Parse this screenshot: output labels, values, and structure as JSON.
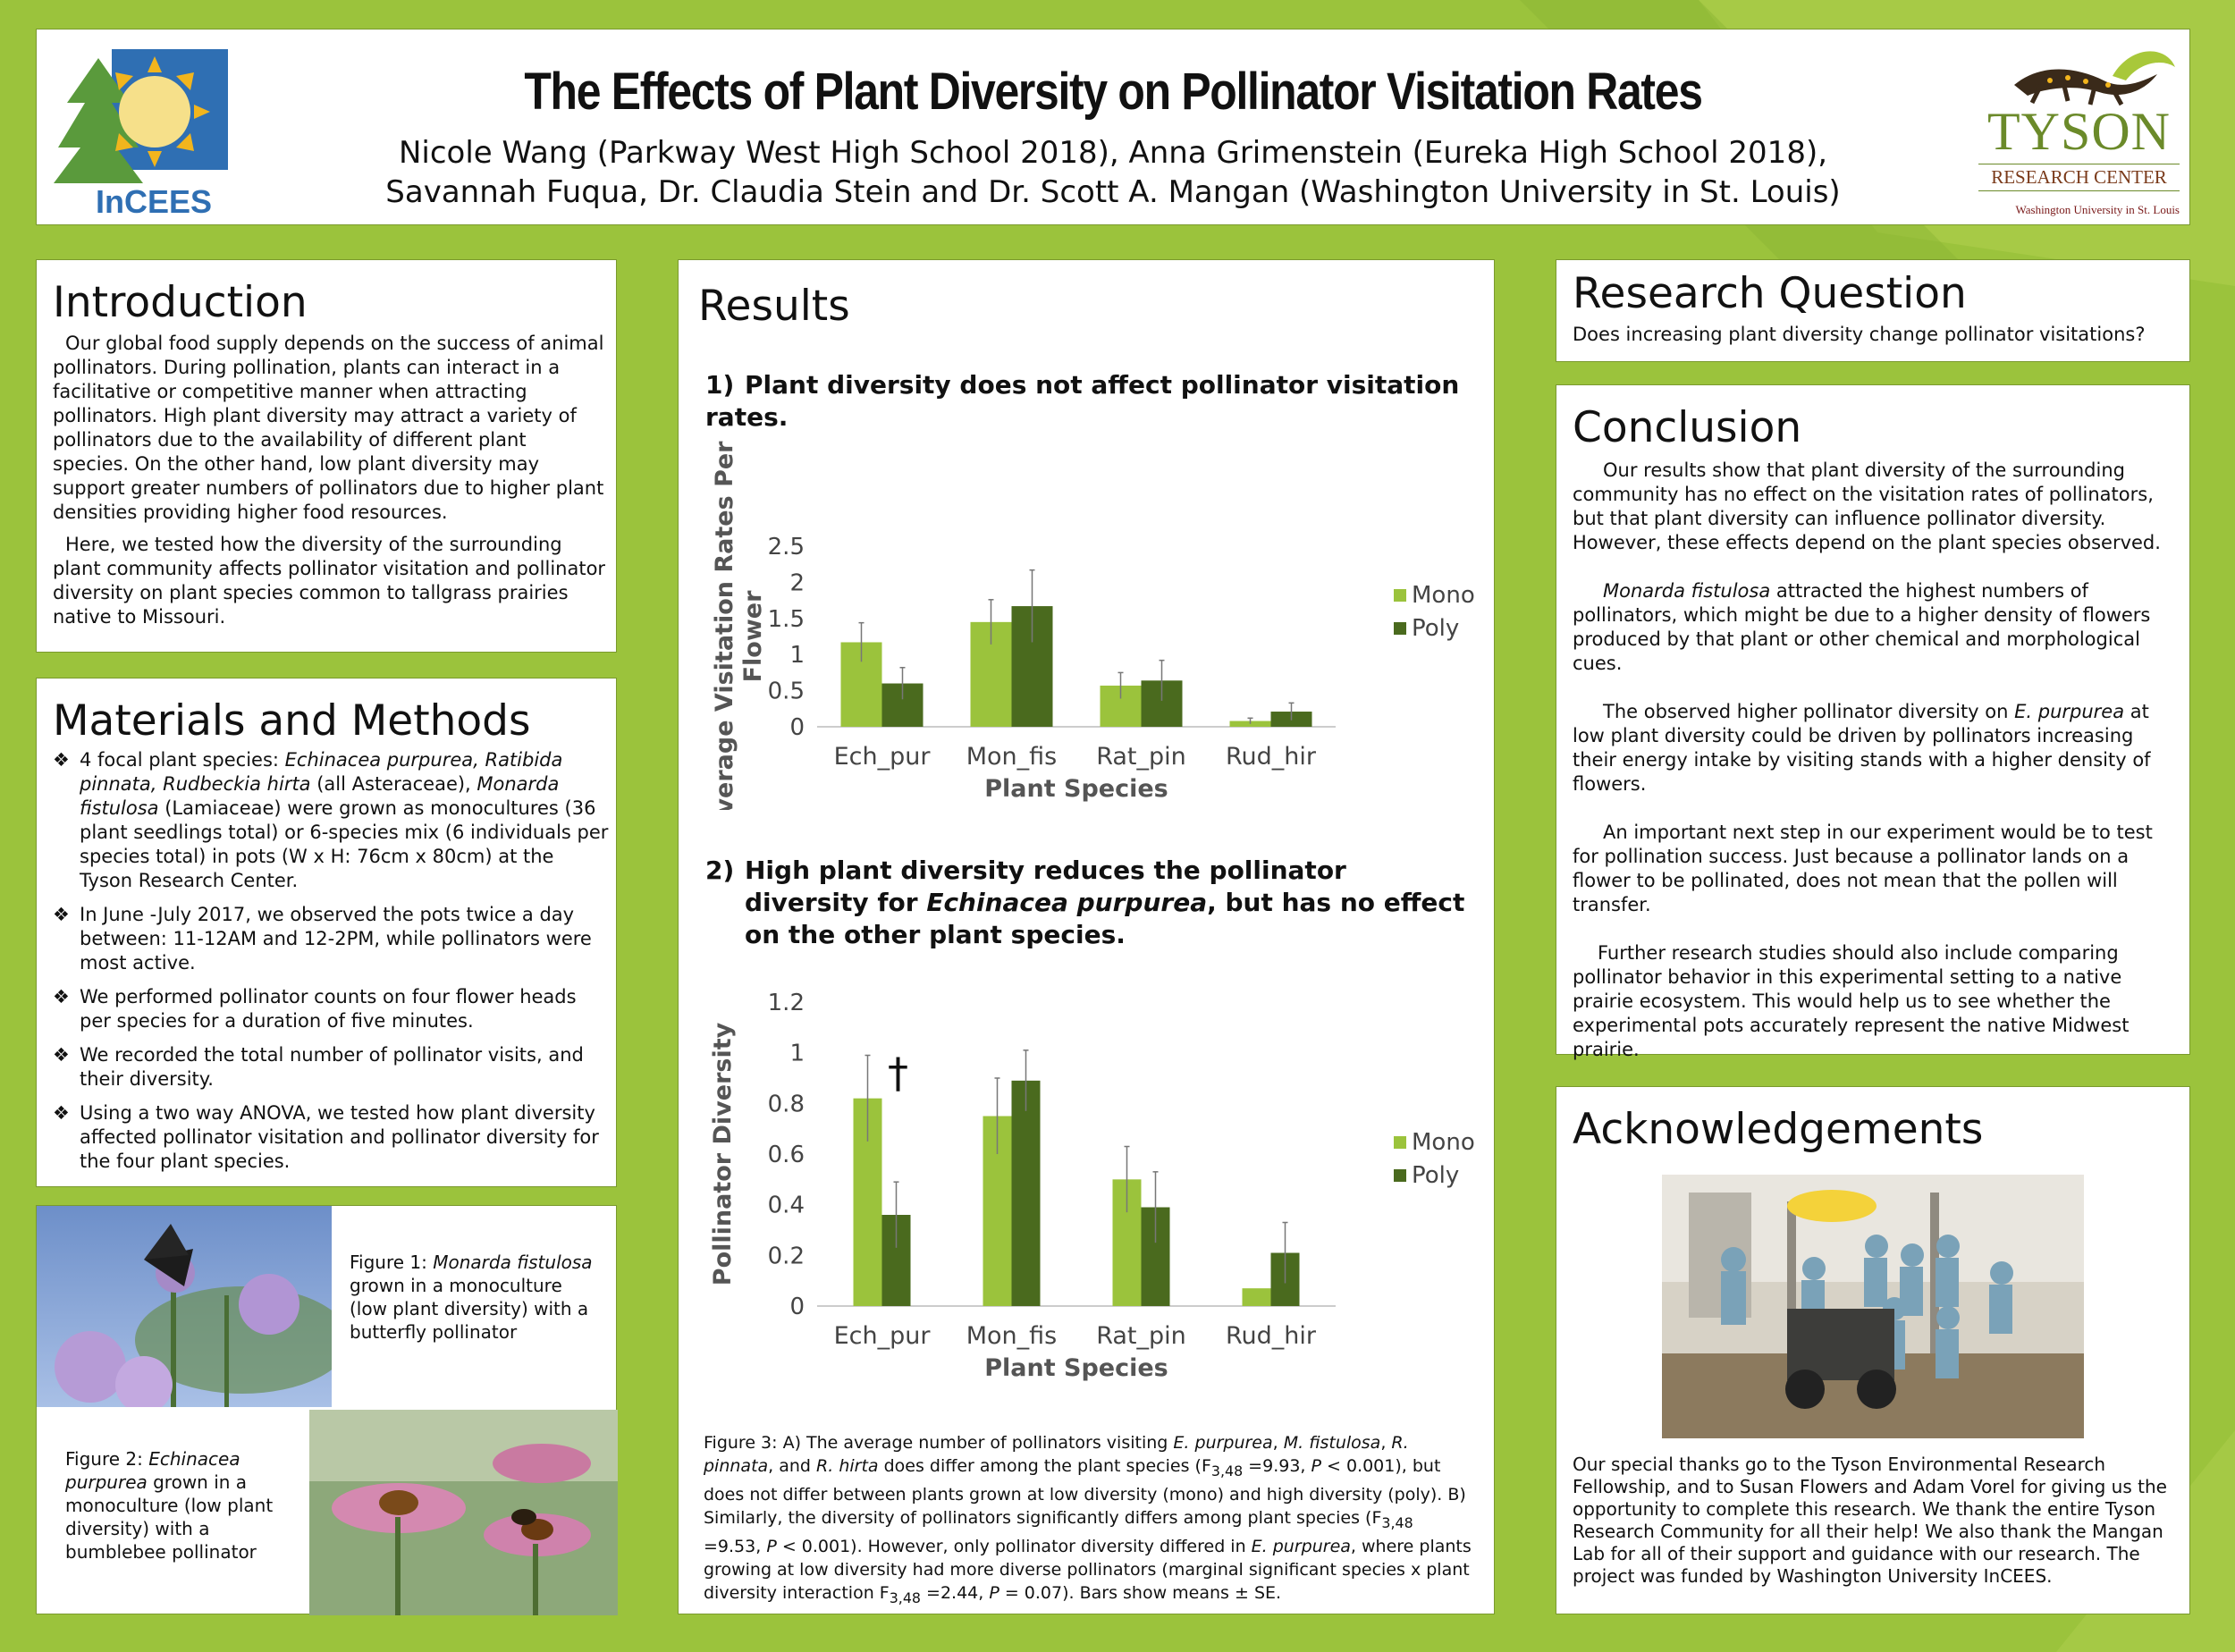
{
  "header": {
    "title": "The Effects of Plant Diversity on Pollinator Visitation Rates",
    "authors_line1": "Nicole Wang (Parkway West High School 2018), Anna Grimenstein (Eureka High School 2018),",
    "authors_line2": "Savannah Fuqua, Dr. Claudia Stein and Dr. Scott A. Mangan (Washington University in St. Louis)",
    "left_logo_text": "InCEES",
    "right_logo_line1": "TYSON",
    "right_logo_line2": "RESEARCH CENTER",
    "right_logo_line3": "Washington University in St. Louis"
  },
  "introduction": {
    "heading": "Introduction",
    "para1": "Our global food supply depends on the success of animal pollinators. During pollination, plants can interact in a facilitative or competitive manner when attracting pollinators. High plant diversity may attract a variety of pollinators due to the availability of different plant species. On the other hand, low plant diversity may support greater numbers of pollinators due to higher plant densities providing higher food resources.",
    "para2": "Here, we tested how the diversity of the surrounding plant community affects pollinator visitation and pollinator diversity on plant species common to tallgrass prairies native to Missouri."
  },
  "methods": {
    "heading": "Materials and Methods",
    "bullet_symbol": "❖",
    "b1_a": "4 focal plant species: ",
    "b1_it1": "Echinacea purpurea, Ratibida pinnata, Rudbeckia hirta",
    "b1_b": " (all Asteraceae), ",
    "b1_it2": "Monarda fistulosa",
    "b1_c": " (Lamiaceae) were grown as monocultures (36 plant seedlings total) or 6-species mix (6 individuals per species total) in pots (W x H: 76cm x 80cm) at the Tyson Research Center.",
    "b2": "In June -July 2017, we observed the pots twice a day between: 11-12AM and 12-2PM, while pollinators were most active.",
    "b3": "We performed pollinator counts on four flower heads per species for a duration of five minutes.",
    "b4": "We recorded the total number of pollinator visits, and their diversity.",
    "b5": "Using a two way ANOVA, we tested how plant diversity affected pollinator visitation and pollinator diversity for the four plant species."
  },
  "figures": {
    "fig1_a": "Figure 1: ",
    "fig1_it": "Monarda fistulosa",
    "fig1_b": " grown in a monoculture (low plant diversity) with a butterfly pollinator",
    "fig2_a": "Figure 2: ",
    "fig2_it": "Echinacea purpurea",
    "fig2_b": " grown in a monoculture (low plant diversity) with a bumblebee pollinator"
  },
  "results": {
    "heading": "Results",
    "q1_num": "1)",
    "q1_text": "Plant diversity does not affect pollinator visitation rates.",
    "q2_num": "2)",
    "q2_text_a": "High plant diversity reduces the pollinator diversity for ",
    "q2_text_it": "Echinacea purpurea",
    "q2_text_b": ", but has no effect on the other plant species.",
    "caption": "Figure 3: A) The average number of pollinators visiting E. purpurea, M. fistulosa, R. pinnata, and R. hirta does differ among the plant species (F3,48 =9.93, P < 0.001), but does not differ between plants grown at low diversity (mono) and high diversity (poly). B) Similarly, the diversity of pollinators significantly differs among plant species (F3,48 =9.53, P < 0.001). However, only pollinator diversity differed in E. purpurea, where plants growing at low diversity had more diverse pollinators (marginal significant species x plant diversity interaction F3,48 =2.44, P = 0.07). Bars show means ± SE."
  },
  "chart_data": [
    {
      "type": "bar",
      "categories": [
        "Ech_pur",
        "Mon_fis",
        "Rat_pin",
        "Rud_hir"
      ],
      "series": [
        {
          "name": "Mono",
          "values": [
            1.17,
            1.45,
            0.57,
            0.08
          ],
          "se": [
            0.27,
            0.31,
            0.18,
            0.04
          ],
          "color": "#9bc33c"
        },
        {
          "name": "Poly",
          "values": [
            0.6,
            1.67,
            0.64,
            0.21
          ],
          "se": [
            0.22,
            0.5,
            0.28,
            0.12
          ],
          "color": "#4a6a1e"
        }
      ],
      "xlabel": "Plant Species",
      "ylabel": "Average Visitation Rates Per Flower",
      "ylim": [
        0,
        2.5
      ],
      "yticks": [
        "0",
        "0.5",
        "1",
        "1.5",
        "2",
        "2.5"
      ],
      "ytick_values": [
        0,
        0.5,
        1,
        1.5,
        2,
        2.5
      ],
      "legend": "right",
      "grid": false
    },
    {
      "type": "bar",
      "categories": [
        "Ech_pur",
        "Mon_fis",
        "Rat_pin",
        "Rud_hir"
      ],
      "series": [
        {
          "name": "Mono",
          "values": [
            0.82,
            0.75,
            0.5,
            0.07
          ],
          "se": [
            0.17,
            0.15,
            0.13,
            0
          ],
          "color": "#9bc33c"
        },
        {
          "name": "Poly",
          "values": [
            0.36,
            0.89,
            0.39,
            0.21
          ],
          "se": [
            0.13,
            0.12,
            0.14,
            0.12
          ],
          "color": "#4a6a1e"
        }
      ],
      "xlabel": "Plant Species",
      "ylabel": "Pollinator Diversity",
      "ylim": [
        0,
        1.2
      ],
      "yticks": [
        "0",
        "0.2",
        "0.4",
        "0.6",
        "0.8",
        "1",
        "1.2"
      ],
      "ytick_values": [
        0,
        0.2,
        0.4,
        0.6,
        0.8,
        1,
        1.2
      ],
      "annotation": "†",
      "legend": "right",
      "grid": false
    }
  ],
  "research_question": {
    "heading": "Research Question",
    "text": "Does increasing plant diversity change pollinator visitations?"
  },
  "conclusion": {
    "heading": "Conclusion",
    "p1": "Our results show that plant diversity of the surrounding community has no effect on the visitation rates of pollinators, but that plant diversity can influence pollinator diversity. However, these effects depend on the plant species observed.",
    "p2_it": "Monarda fistulosa",
    "p2_b": " attracted the highest numbers of pollinators, which might be due to a higher density of flowers produced by that plant or other chemical and morphological cues.",
    "p3_a": "The observed higher pollinator diversity on ",
    "p3_it": "E. purpurea",
    "p3_b": " at low plant diversity could be driven by pollinators increasing their energy intake by visiting stands with a higher density of flowers.",
    "p4": "An important next step in our experiment would be to test for pollination success. Just because a pollinator lands on a flower to be pollinated, does not mean that the pollen will transfer.",
    "p5": "Further research studies should also include comparing pollinator behavior in this experimental setting to a native prairie ecosystem. This would help us to see whether the experimental pots accurately represent the native Midwest prairie."
  },
  "acknowledgements": {
    "heading": "Acknowledgements",
    "text": "Our special thanks go to the Tyson Environmental Research Fellowship, and to Susan Flowers and Adam Vorel for giving us the opportunity to complete this research. We thank the entire Tyson Research Community for all their help! We also thank the Mangan Lab for all of their support and guidance with our research. The project was funded by Washington University InCEES."
  }
}
